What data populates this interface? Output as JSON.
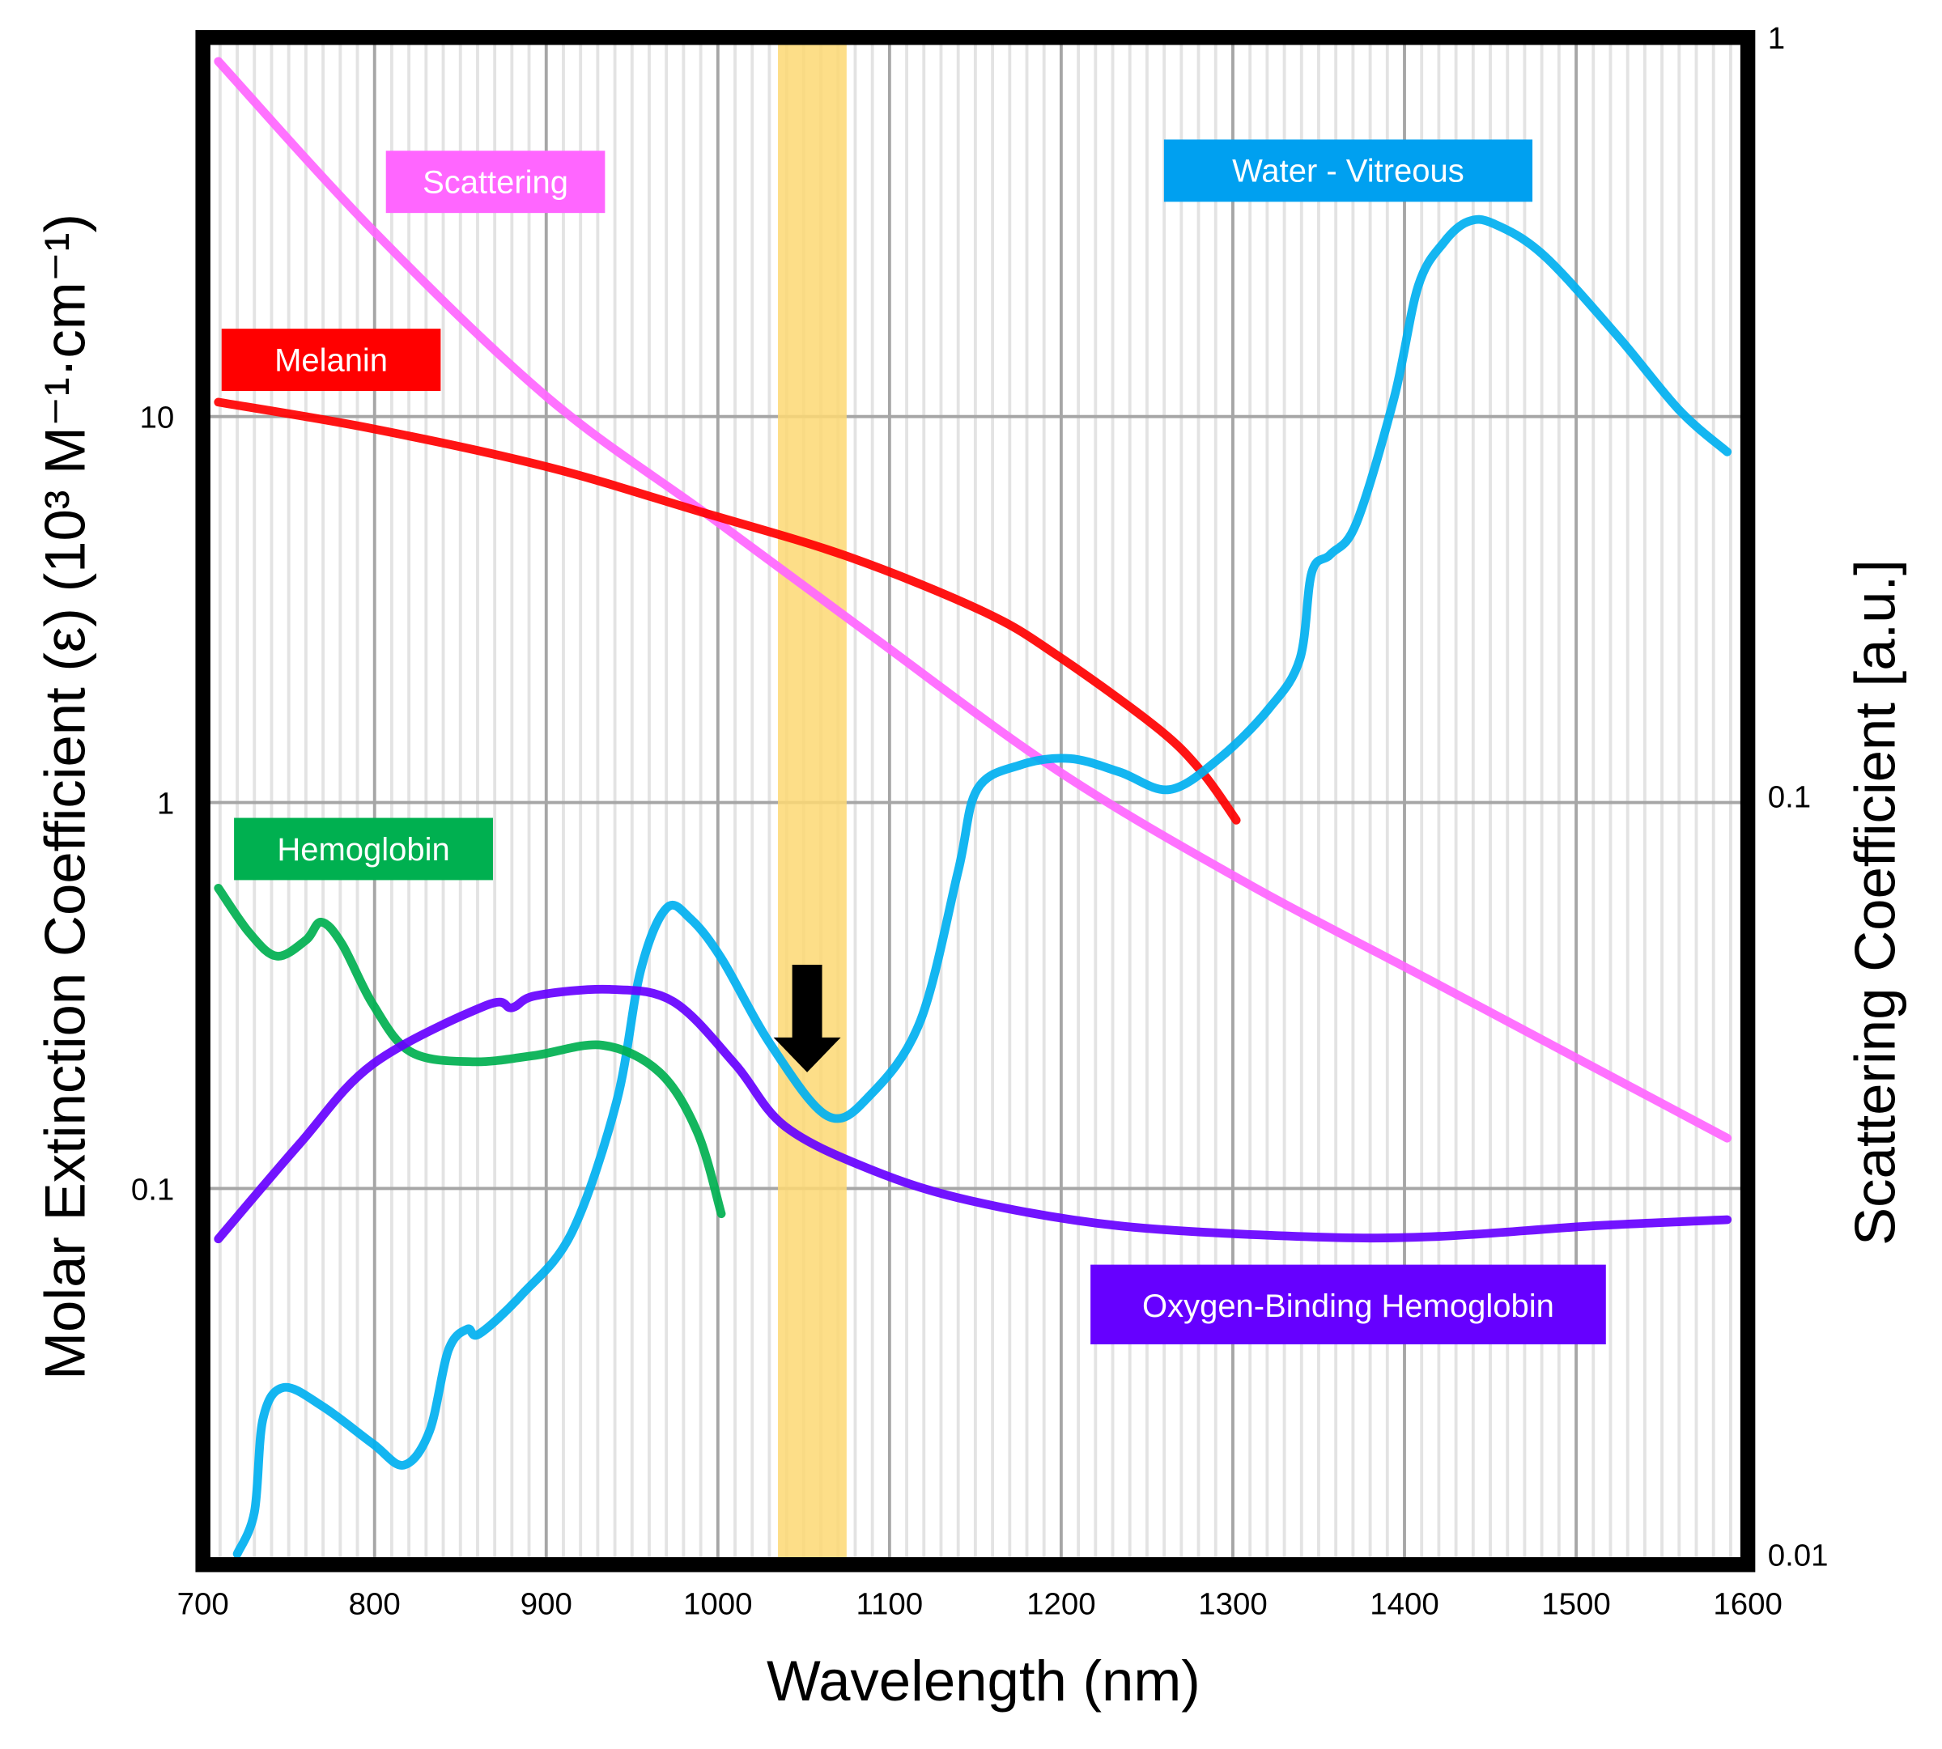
{
  "chart_data": {
    "type": "line",
    "xlabel": "Wavelength (nm)",
    "ylabel": "Molar Extinction Coefficient (ε) (10³ M⁻¹·cm⁻¹)",
    "ylabel_right": "Scattering Coefficient [a.u.]",
    "xlim": [
      700,
      1600
    ],
    "ylim": [
      0.0106,
      96
    ],
    "ylim_right": [
      0.0097,
      1
    ],
    "yscale": "log",
    "yscale_right": "log",
    "x_ticks": [
      "700",
      "800",
      "900",
      "1000",
      "1100",
      "1200",
      "1300",
      "1400",
      "1500",
      "1600"
    ],
    "y_ticks": [
      {
        "value": 10,
        "label": "10"
      },
      {
        "value": 1,
        "label": "1"
      },
      {
        "value": 0.1,
        "label": "0.1"
      }
    ],
    "y_ticks_right": [
      {
        "value": 1,
        "label": "1"
      },
      {
        "value": 0.1,
        "label": "0.1"
      },
      {
        "value": 0.01,
        "label": "0.01"
      }
    ],
    "grid": true,
    "highlight_band": {
      "x": [
        1035,
        1075
      ],
      "color": "#fdd873"
    },
    "arrow": {
      "x": 1052,
      "y_from": 0.38,
      "y_to": 0.2,
      "color": "#000000"
    },
    "series": [
      {
        "name": "Scattering",
        "axis": "right",
        "color": "#ff66ff",
        "points": [
          [
            709,
            0.93
          ],
          [
            799,
            0.557
          ],
          [
            901,
            0.335
          ],
          [
            995,
            0.234
          ],
          [
            1089,
            0.163
          ],
          [
            1198,
            0.108
          ],
          [
            1307,
            0.077
          ],
          [
            1416,
            0.057
          ],
          [
            1588,
            0.0354
          ]
        ]
      },
      {
        "name": "Melanin",
        "axis": "left",
        "color": "#ff0000",
        "points": [
          [
            709,
            10.9
          ],
          [
            799,
            9.3
          ],
          [
            901,
            7.4
          ],
          [
            988,
            5.7
          ],
          [
            1075,
            4.35
          ],
          [
            1155,
            3.12
          ],
          [
            1198,
            2.4
          ],
          [
            1256,
            1.56
          ],
          [
            1282,
            1.2
          ],
          [
            1302,
            0.9
          ]
        ]
      },
      {
        "name": "Water - Vitreous",
        "axis": "left",
        "color": "#00b0f0",
        "points": [
          [
            720,
            0.0113
          ],
          [
            730,
            0.0145
          ],
          [
            735,
            0.0253
          ],
          [
            747,
            0.0305
          ],
          [
            770,
            0.0272
          ],
          [
            799,
            0.0218
          ],
          [
            817,
            0.0192
          ],
          [
            832,
            0.0235
          ],
          [
            843,
            0.0381
          ],
          [
            854,
            0.0432
          ],
          [
            861,
            0.042
          ],
          [
            886,
            0.0532
          ],
          [
            915,
            0.077
          ],
          [
            941,
            0.168
          ],
          [
            955,
            0.367
          ],
          [
            970,
            0.532
          ],
          [
            984,
            0.5
          ],
          [
            1002,
            0.395
          ],
          [
            1031,
            0.235
          ],
          [
            1064,
            0.154
          ],
          [
            1089,
            0.175
          ],
          [
            1118,
            0.272
          ],
          [
            1140,
            0.665
          ],
          [
            1151,
            1.08
          ],
          [
            1176,
            1.25
          ],
          [
            1205,
            1.3
          ],
          [
            1234,
            1.2
          ],
          [
            1263,
            1.08
          ],
          [
            1292,
            1.3
          ],
          [
            1321,
            1.75
          ],
          [
            1339,
            2.35
          ],
          [
            1346,
            3.95
          ],
          [
            1357,
            4.4
          ],
          [
            1372,
            5.3
          ],
          [
            1394,
            11.2
          ],
          [
            1408,
            21.8
          ],
          [
            1423,
            28.3
          ],
          [
            1437,
            32
          ],
          [
            1452,
            31.6
          ],
          [
            1481,
            26.2
          ],
          [
            1524,
            16.2
          ],
          [
            1560,
            10.4
          ],
          [
            1588,
            8.1
          ]
        ]
      },
      {
        "name": "Hemoglobin",
        "axis": "left",
        "color": "#00b050",
        "points": [
          [
            709,
            0.6
          ],
          [
            727,
            0.46
          ],
          [
            743,
            0.4
          ],
          [
            760,
            0.44
          ],
          [
            769,
            0.49
          ],
          [
            781,
            0.43
          ],
          [
            799,
            0.3
          ],
          [
            821,
            0.226
          ],
          [
            857,
            0.213
          ],
          [
            893,
            0.221
          ],
          [
            933,
            0.235
          ],
          [
            966,
            0.2
          ],
          [
            988,
            0.14
          ],
          [
            1002,
            0.086
          ]
        ]
      },
      {
        "name": "Oxygen-Binding Hemoglobin",
        "axis": "left",
        "color": "#6600ff",
        "points": [
          [
            709,
            0.074
          ],
          [
            756,
            0.13
          ],
          [
            799,
            0.21
          ],
          [
            865,
            0.298
          ],
          [
            880,
            0.294
          ],
          [
            894,
            0.316
          ],
          [
            937,
            0.328
          ],
          [
            974,
            0.305
          ],
          [
            1010,
            0.21
          ],
          [
            1039,
            0.145
          ],
          [
            1089,
            0.112
          ],
          [
            1147,
            0.093
          ],
          [
            1234,
            0.08
          ],
          [
            1343,
            0.075
          ],
          [
            1416,
            0.075
          ],
          [
            1510,
            0.08
          ],
          [
            1588,
            0.083
          ]
        ]
      }
    ]
  }
}
